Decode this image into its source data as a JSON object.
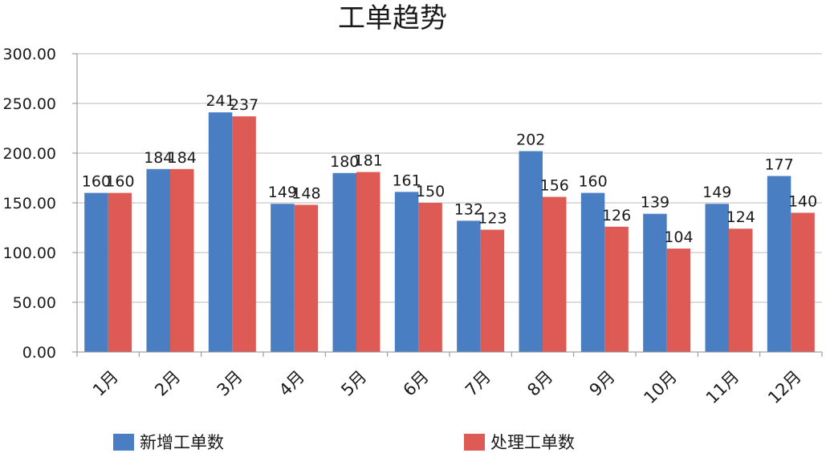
{
  "chart_data": {
    "type": "bar",
    "title": "工单趋势",
    "categories": [
      "1月",
      "2月",
      "3月",
      "4月",
      "5月",
      "6月",
      "7月",
      "8月",
      "9月",
      "10月",
      "11月",
      "12月"
    ],
    "series": [
      {
        "name": "新增工单数",
        "color": "#4a7ec2",
        "values": [
          160,
          184,
          241,
          149,
          180,
          161,
          132,
          202,
          160,
          139,
          149,
          177
        ]
      },
      {
        "name": "处理工单数",
        "color": "#dd5a55",
        "values": [
          160,
          184,
          237,
          148,
          181,
          150,
          123,
          156,
          126,
          104,
          124,
          140
        ]
      }
    ],
    "y_ticks": [
      "0.00",
      "50.00",
      "100.00",
      "150.00",
      "200.00",
      "250.00",
      "300.00"
    ],
    "ylim": [
      0,
      300
    ],
    "grid": true,
    "legend_position": "bottom",
    "data_labels": true
  }
}
